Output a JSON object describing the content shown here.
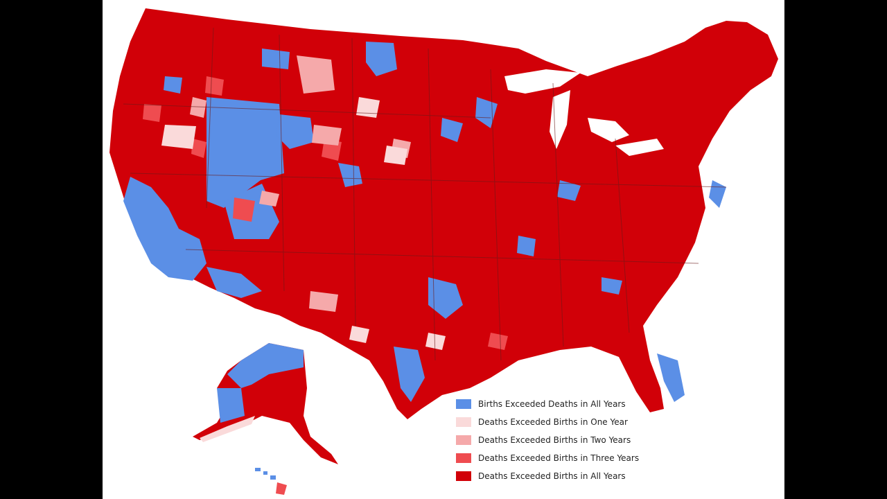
{
  "colors": {
    "background_bars": "#000000",
    "page": "#ffffff",
    "births_all_years": "#5b8fe6",
    "deaths_one_year": "#fadada",
    "deaths_two_years": "#f5a9aa",
    "deaths_three_years": "#ef4c50",
    "deaths_all_years": "#d10008",
    "state_border": "#6b1a1a"
  },
  "map": {
    "subject": "United States counties (contiguous US, Alaska, Hawaii)"
  },
  "legend": {
    "items": [
      {
        "label": "Births Exceeded Deaths in All Years",
        "color": "#5b8fe6"
      },
      {
        "label": "Deaths Exceeded Births in One Year",
        "color": "#fadada"
      },
      {
        "label": "Deaths Exceeded Births in Two Years",
        "color": "#f5a9aa"
      },
      {
        "label": "Deaths Exceeded Births in Three Years",
        "color": "#ef4c50"
      },
      {
        "label": "Deaths Exceeded Births in All Years",
        "color": "#d10008"
      }
    ]
  }
}
